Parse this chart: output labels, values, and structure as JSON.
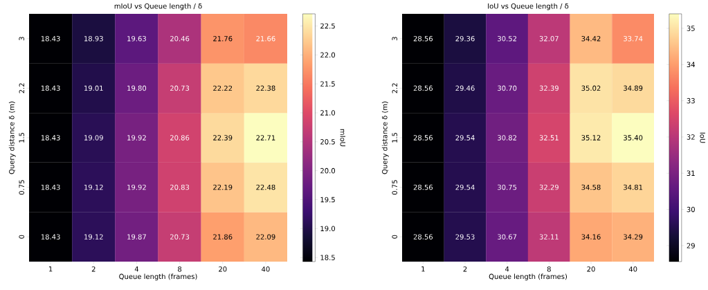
{
  "chart_data": [
    {
      "type": "heatmap",
      "title": "mIoU vs Queue length / δ",
      "xlabel": "Queue length (frames)",
      "ylabel": "Query distance δ (m)",
      "clabel": "mIoU",
      "categories": [
        "1",
        "2",
        "4",
        "8",
        "20",
        "40"
      ],
      "y_categories": [
        "3",
        "2.2",
        "1.5",
        "0.75",
        "0"
      ],
      "cells": [
        [
          18.43,
          18.93,
          19.63,
          20.46,
          21.76,
          21.66
        ],
        [
          18.43,
          19.01,
          19.8,
          20.73,
          22.22,
          22.38
        ],
        [
          18.43,
          19.09,
          19.92,
          20.86,
          22.39,
          22.71
        ],
        [
          18.43,
          19.12,
          19.92,
          20.83,
          22.19,
          22.48
        ],
        [
          18.43,
          19.12,
          19.87,
          20.73,
          21.86,
          22.09
        ]
      ],
      "cell_labels": [
        [
          "18.43",
          "18.93",
          "19.63",
          "20.46",
          "21.76",
          "21.66"
        ],
        [
          "18.43",
          "19.01",
          "19.80",
          "20.73",
          "22.22",
          "22.38"
        ],
        [
          "18.43",
          "19.09",
          "19.92",
          "20.86",
          "22.39",
          "22.71"
        ],
        [
          "18.43",
          "19.12",
          "19.92",
          "20.83",
          "22.19",
          "22.48"
        ],
        [
          "18.43",
          "19.12",
          "19.87",
          "20.73",
          "21.86",
          "22.09"
        ]
      ],
      "data_labels": true,
      "clim": [
        18.43,
        22.71
      ],
      "cticks": [
        18.5,
        {
          "value": 19.0,
          "label": "19.0"
        },
        19.5,
        {
          "value": 20.0,
          "label": "20.0"
        },
        20.5,
        {
          "value": 21.0,
          "label": "21.0"
        },
        21.5,
        {
          "value": 22.0,
          "label": "22.0"
        },
        22.5
      ]
    },
    {
      "type": "heatmap",
      "title": "IoU vs Queue length / δ",
      "xlabel": "Queue length (frames)",
      "ylabel": "Query distance δ (m)",
      "clabel": "IoU",
      "categories": [
        "1",
        "2",
        "4",
        "8",
        "20",
        "40"
      ],
      "y_categories": [
        "3",
        "2.2",
        "1.5",
        "0.75",
        "0"
      ],
      "cells": [
        [
          28.56,
          29.36,
          30.52,
          32.07,
          34.42,
          33.74
        ],
        [
          28.56,
          29.46,
          30.7,
          32.39,
          35.02,
          34.89
        ],
        [
          28.56,
          29.54,
          30.82,
          32.51,
          35.12,
          35.4
        ],
        [
          28.56,
          29.54,
          30.75,
          32.29,
          34.58,
          34.81
        ],
        [
          28.56,
          29.53,
          30.67,
          32.11,
          34.16,
          34.29
        ]
      ],
      "cell_labels": [
        [
          "28.56",
          "29.36",
          "30.52",
          "32.07",
          "34.42",
          "33.74"
        ],
        [
          "28.56",
          "29.46",
          "30.70",
          "32.39",
          "35.02",
          "34.89"
        ],
        [
          "28.56",
          "29.54",
          "30.82",
          "32.51",
          "35.12",
          "35.40"
        ],
        [
          "28.56",
          "29.54",
          "30.75",
          "32.29",
          "34.58",
          "34.81"
        ],
        [
          "28.56",
          "29.53",
          "30.67",
          "32.11",
          "34.16",
          "34.29"
        ]
      ],
      "data_labels": true,
      "clim": [
        28.56,
        35.4
      ],
      "cticks": [
        29,
        30,
        31,
        32,
        33,
        34,
        35
      ]
    }
  ]
}
